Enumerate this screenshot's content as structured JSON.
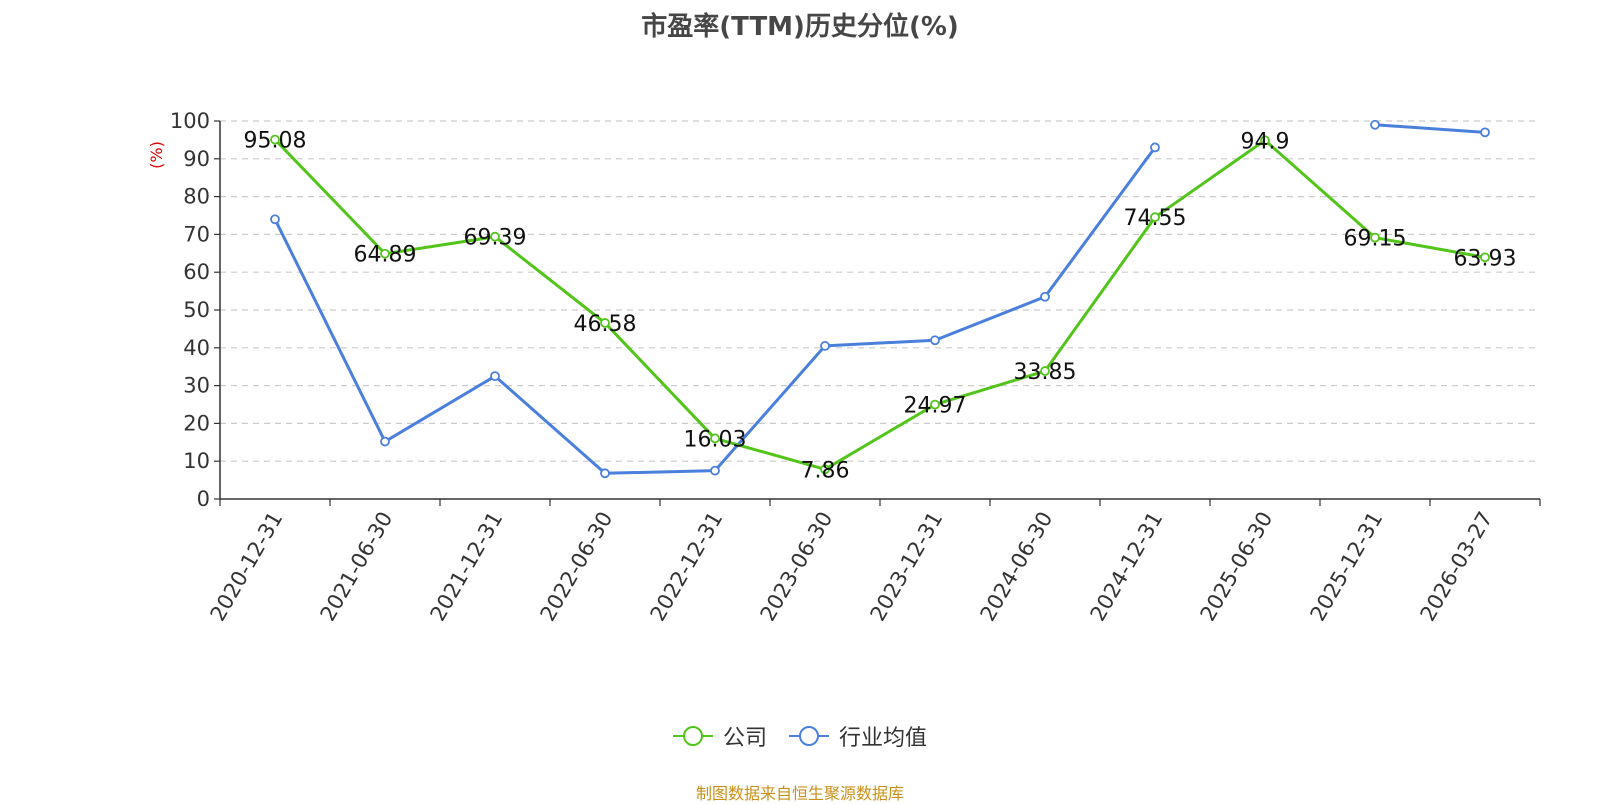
{
  "title": "市盈率(TTM)历史分位(%)",
  "credit": "制图数据来自恒生聚源数据库",
  "colors": {
    "company": "#52c41a",
    "industry": "#4a7fdc",
    "ylabel": "#e00000"
  },
  "chart_data": {
    "type": "line",
    "title": "市盈率(TTM)历史分位(%)",
    "ylabel": "(%)",
    "xlabel": "",
    "ylim": [
      0,
      100
    ],
    "yticks": [
      0,
      10,
      20,
      30,
      40,
      50,
      60,
      70,
      80,
      90,
      100
    ],
    "grid": true,
    "legend_position": "bottom",
    "categories": [
      "2020-12-31",
      "2021-06-30",
      "2021-12-31",
      "2022-06-30",
      "2022-12-31",
      "2023-06-30",
      "2023-12-31",
      "2024-06-30",
      "2024-12-31",
      "2025-06-30",
      "2025-12-31",
      "2026-03-27"
    ],
    "series": [
      {
        "name": "公司",
        "color": "#52c41a",
        "show_labels": true,
        "values": [
          95.08,
          64.89,
          69.39,
          46.58,
          16.03,
          7.86,
          24.97,
          33.85,
          74.55,
          94.9,
          69.15,
          63.93
        ]
      },
      {
        "name": "行业均值",
        "color": "#4a7fdc",
        "show_labels": false,
        "values": [
          74,
          15.2,
          32.5,
          6.8,
          7.5,
          40.5,
          42,
          53.5,
          93,
          null,
          99,
          97
        ]
      }
    ]
  }
}
